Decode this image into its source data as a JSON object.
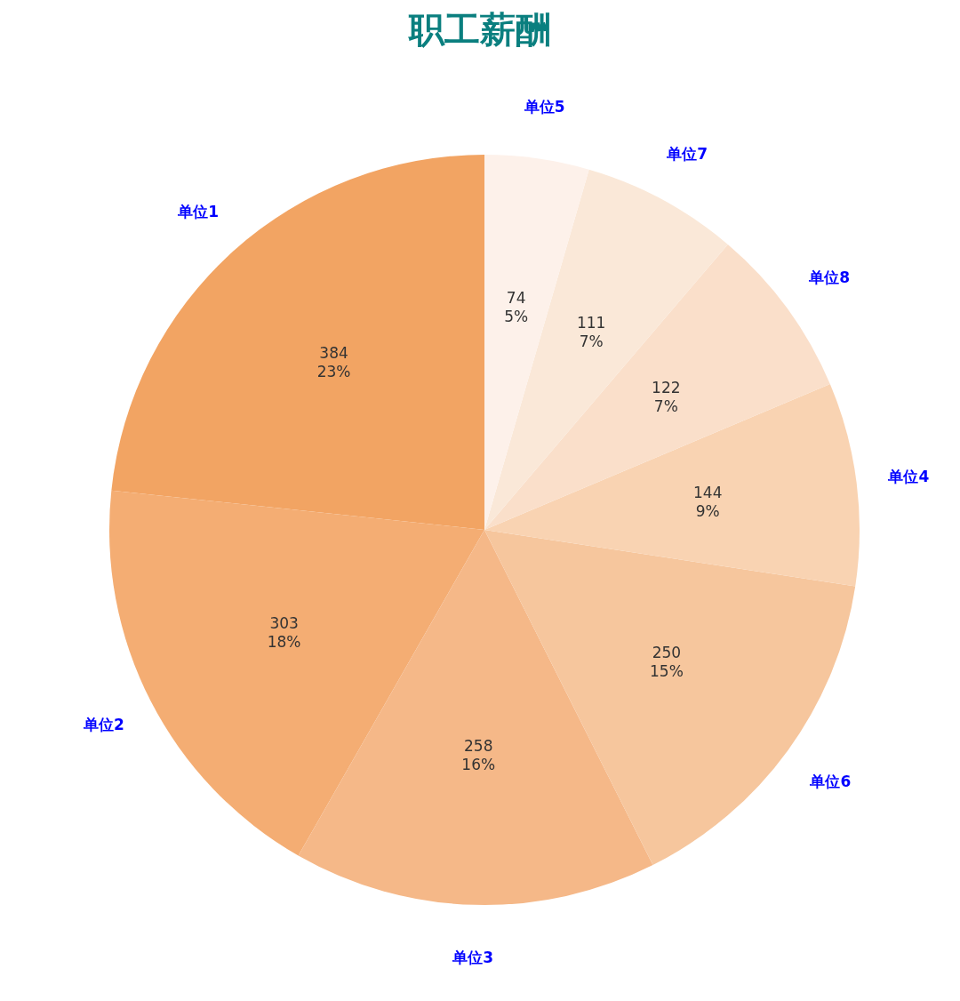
{
  "chart_data": {
    "type": "pie",
    "title": "职工薪酬",
    "categories": [
      "单位1",
      "单位2",
      "单位3",
      "单位6",
      "单位4",
      "单位8",
      "单位7",
      "单位5"
    ],
    "values": [
      384,
      303,
      258,
      250,
      144,
      122,
      111,
      74
    ],
    "value_labels": [
      "384\n23%",
      "303\n18%",
      "258\n16%",
      "250\n15%",
      "144\n9%",
      "122\n7%",
      "111\n7%",
      "74\n5%"
    ],
    "colors": [
      "#f2a463",
      "#f4ad73",
      "#f5b888",
      "#f6c69d",
      "#f9d3b2",
      "#fadfca",
      "#fae8d8",
      "#fdf1ea"
    ]
  }
}
